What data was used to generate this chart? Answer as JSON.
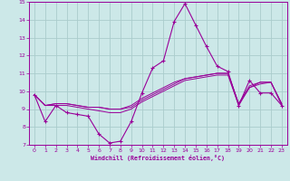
{
  "xlabel": "Windchill (Refroidissement éolien,°C)",
  "bg_color": "#cce8e8",
  "grid_color": "#aacccc",
  "line_color": "#990099",
  "xlim": [
    -0.5,
    23.5
  ],
  "ylim": [
    7,
    15
  ],
  "xticks": [
    0,
    1,
    2,
    3,
    4,
    5,
    6,
    7,
    8,
    9,
    10,
    11,
    12,
    13,
    14,
    15,
    16,
    17,
    18,
    19,
    20,
    21,
    22,
    23
  ],
  "yticks": [
    7,
    8,
    9,
    10,
    11,
    12,
    13,
    14,
    15
  ],
  "series1_x": [
    0,
    1,
    2,
    3,
    4,
    5,
    6,
    7,
    8,
    9,
    10,
    11,
    12,
    13,
    14,
    15,
    16,
    17,
    18,
    19,
    20,
    21,
    22,
    23
  ],
  "series1_y": [
    9.8,
    8.3,
    9.2,
    8.8,
    8.7,
    8.6,
    7.6,
    7.1,
    7.2,
    8.3,
    9.9,
    11.3,
    11.7,
    13.9,
    14.9,
    13.7,
    12.5,
    11.4,
    11.1,
    9.2,
    10.6,
    9.9,
    9.9,
    9.2
  ],
  "series2_x": [
    0,
    1,
    2,
    3,
    4,
    5,
    6,
    7,
    8,
    9,
    10,
    11,
    12,
    13,
    14,
    15,
    16,
    17,
    18,
    19,
    20,
    21,
    22,
    23
  ],
  "series2_y": [
    9.8,
    9.2,
    9.3,
    9.3,
    9.2,
    9.1,
    9.1,
    9.0,
    9.0,
    9.1,
    9.5,
    9.8,
    10.1,
    10.4,
    10.7,
    10.8,
    10.9,
    11.0,
    11.0,
    9.3,
    10.3,
    10.5,
    10.5,
    9.3
  ],
  "series3_x": [
    0,
    1,
    2,
    3,
    4,
    5,
    6,
    7,
    8,
    9,
    10,
    11,
    12,
    13,
    14,
    15,
    16,
    17,
    18,
    19,
    20,
    21,
    22,
    23
  ],
  "series3_y": [
    9.8,
    9.2,
    9.3,
    9.3,
    9.2,
    9.1,
    9.1,
    9.0,
    9.0,
    9.2,
    9.6,
    9.9,
    10.2,
    10.5,
    10.7,
    10.8,
    10.9,
    11.0,
    11.0,
    9.3,
    10.2,
    10.5,
    10.5,
    9.3
  ],
  "series4_x": [
    0,
    1,
    2,
    3,
    4,
    5,
    6,
    7,
    8,
    9,
    10,
    11,
    12,
    13,
    14,
    15,
    16,
    17,
    18,
    19,
    20,
    21,
    22,
    23
  ],
  "series4_y": [
    9.8,
    9.2,
    9.2,
    9.2,
    9.1,
    9.0,
    8.9,
    8.8,
    8.8,
    9.0,
    9.4,
    9.7,
    10.0,
    10.3,
    10.6,
    10.7,
    10.8,
    10.9,
    10.9,
    9.2,
    10.2,
    10.4,
    10.5,
    9.2
  ]
}
